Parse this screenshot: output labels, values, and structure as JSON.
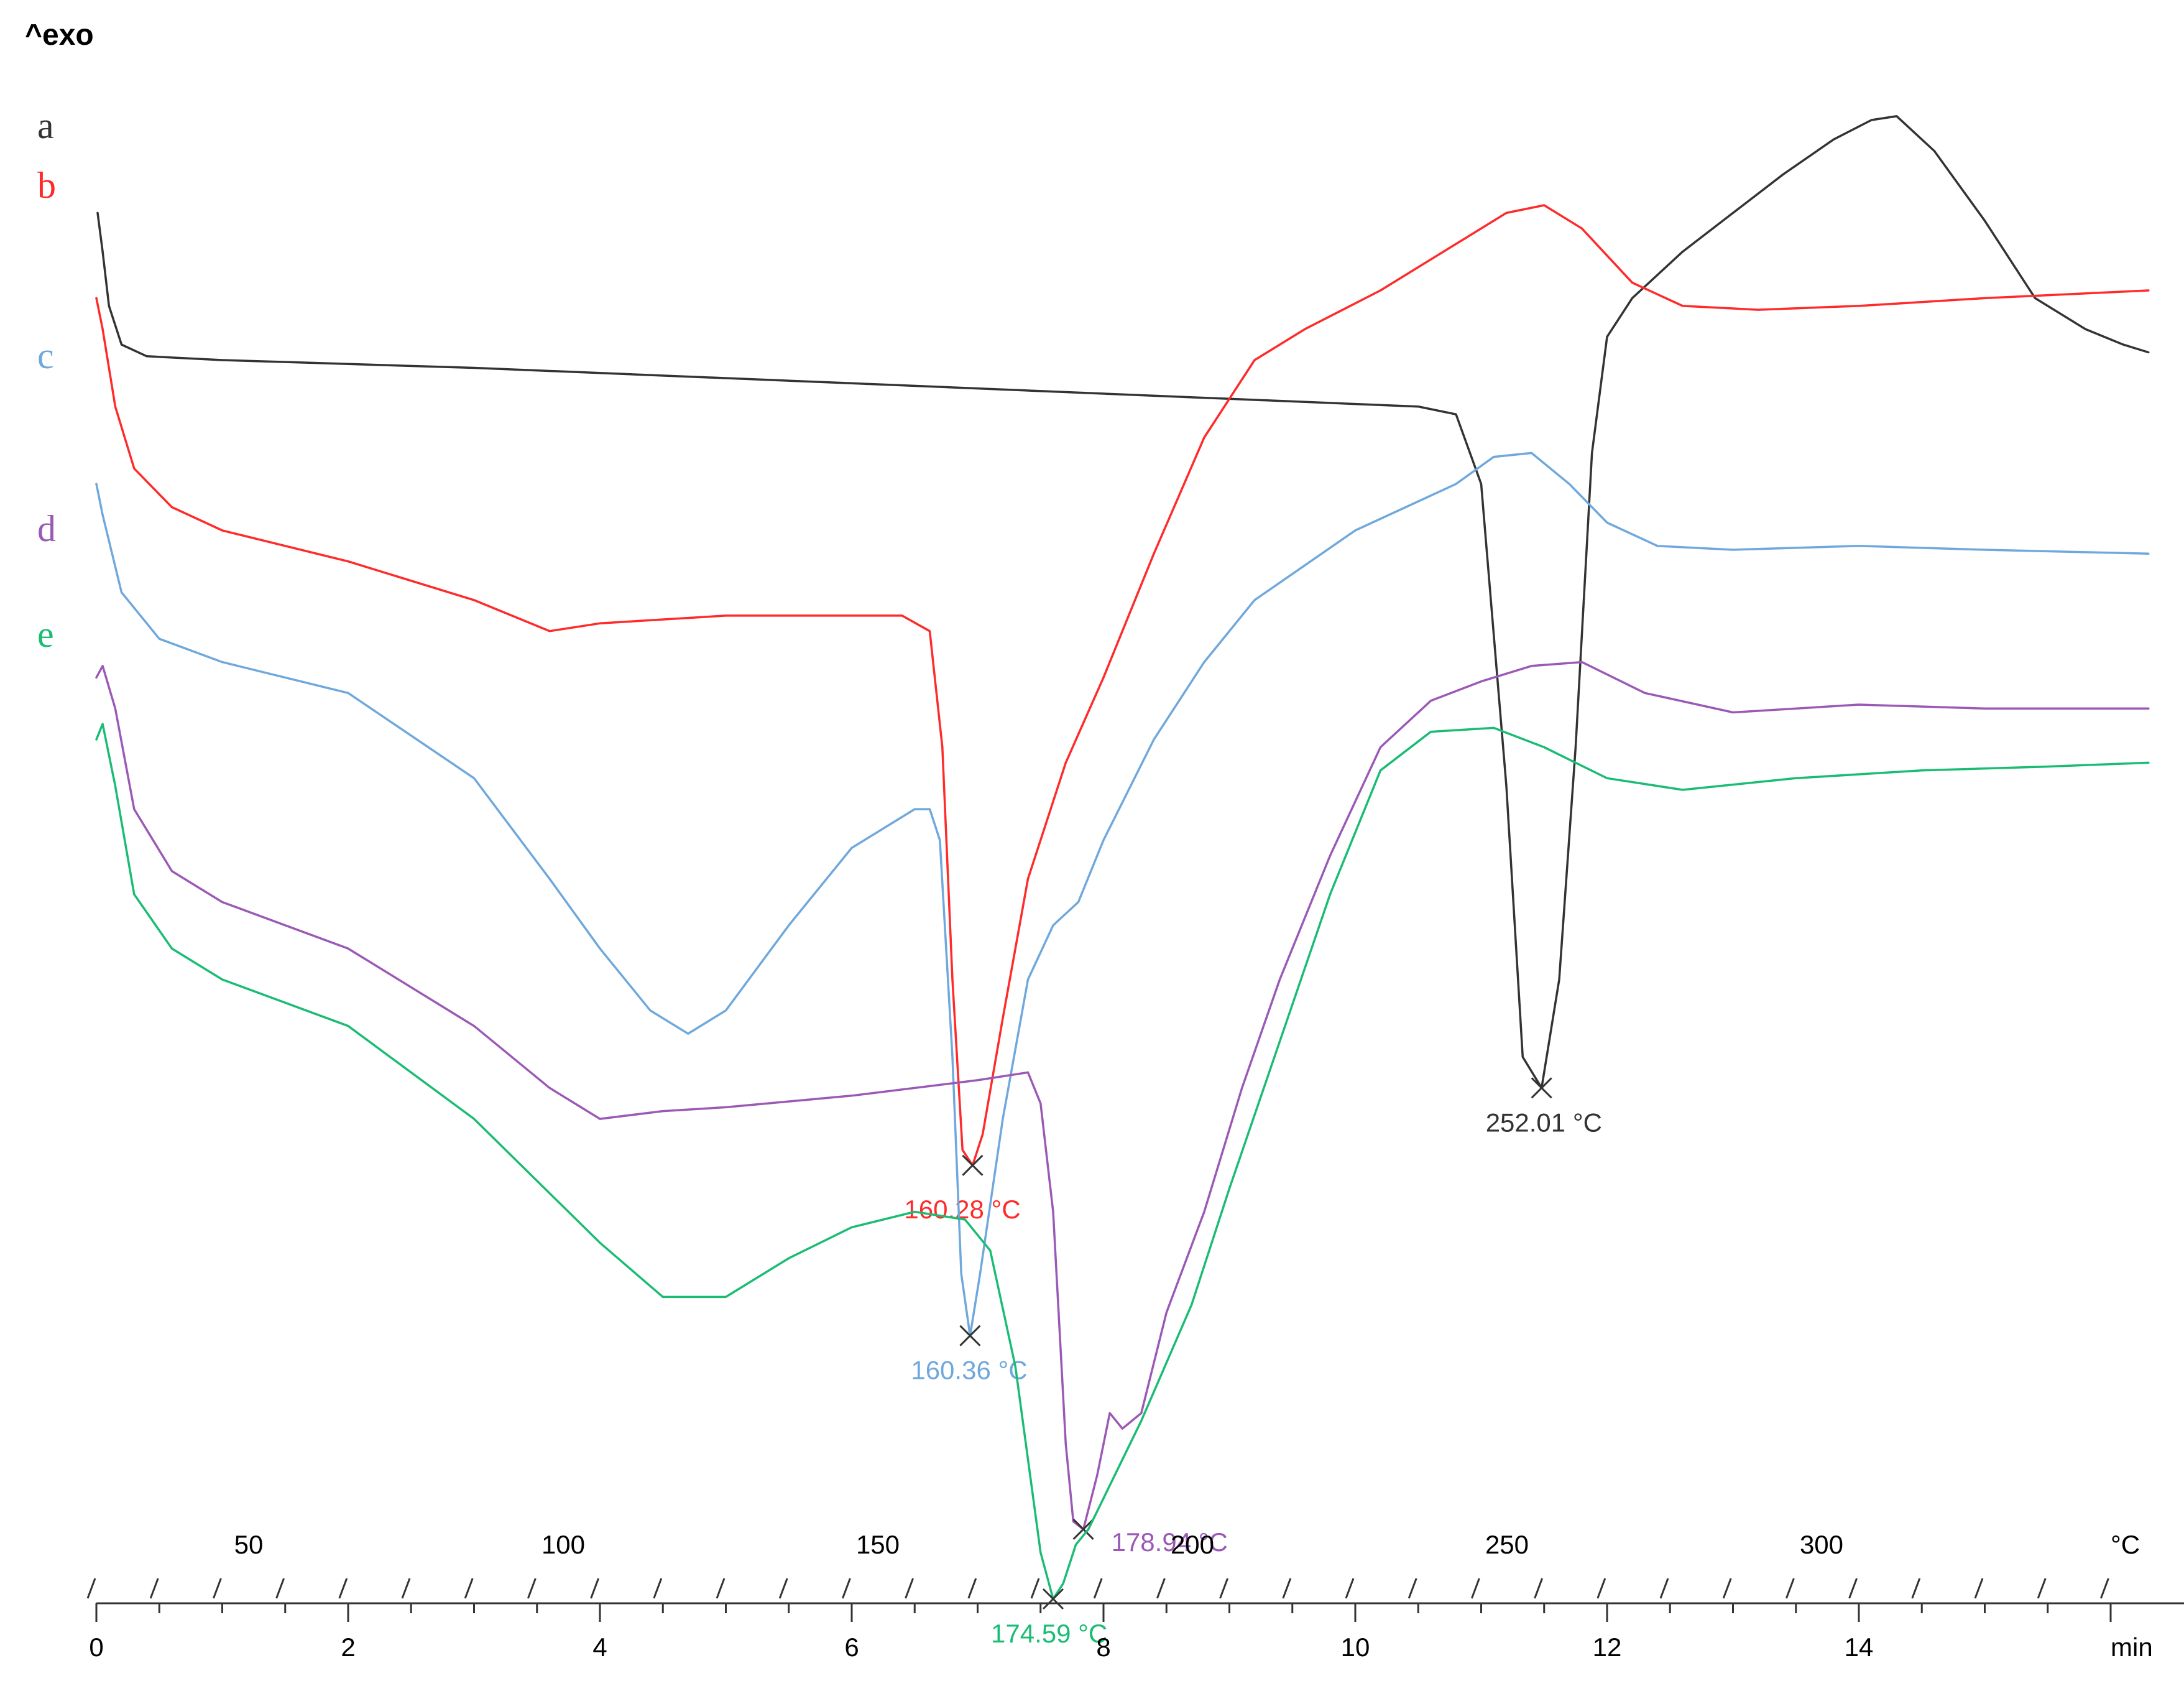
{
  "chart_data": {
    "type": "line",
    "title": "",
    "y_annotation": "^exo",
    "x_primary": {
      "label": "min",
      "ticks": [
        0,
        2,
        4,
        6,
        8,
        10,
        12,
        14
      ],
      "range": [
        0,
        16.3
      ]
    },
    "x_secondary": {
      "label": "°C",
      "ticks": [
        50,
        100,
        150,
        200,
        250,
        300
      ],
      "range": [
        25,
        350
      ]
    },
    "series": [
      {
        "name": "a",
        "color": "#333333",
        "points": [
          [
            0.01,
            0.1
          ],
          [
            0.05,
            0.6
          ],
          [
            0.1,
            1.3
          ],
          [
            0.2,
            1.8
          ],
          [
            0.4,
            1.95
          ],
          [
            1,
            2.0
          ],
          [
            3,
            2.1
          ],
          [
            6,
            2.3
          ],
          [
            9,
            2.5
          ],
          [
            10.5,
            2.6
          ],
          [
            10.8,
            2.7
          ],
          [
            11.0,
            3.6
          ],
          [
            11.2,
            7.5
          ],
          [
            11.33,
            11.0
          ],
          [
            11.48,
            11.4
          ],
          [
            11.62,
            10.0
          ],
          [
            11.75,
            7.0
          ],
          [
            11.88,
            3.2
          ],
          [
            12.0,
            1.7
          ],
          [
            12.2,
            1.2
          ],
          [
            12.6,
            0.6
          ],
          [
            13.0,
            0.1
          ],
          [
            13.4,
            -0.4
          ],
          [
            13.8,
            -0.85
          ],
          [
            14.1,
            -1.1
          ],
          [
            14.3,
            -1.15
          ],
          [
            14.6,
            -0.7
          ],
          [
            15.0,
            0.2
          ],
          [
            15.4,
            1.2
          ],
          [
            15.8,
            1.6
          ],
          [
            16.1,
            1.8
          ],
          [
            16.3,
            1.9
          ]
        ],
        "peaks": [
          {
            "x": 11.48,
            "y": 11.4,
            "label": "252.01 °C"
          }
        ]
      },
      {
        "name": "b",
        "color": "#ff2a2a",
        "points": [
          [
            0.0,
            1.2
          ],
          [
            0.05,
            1.6
          ],
          [
            0.15,
            2.6
          ],
          [
            0.3,
            3.4
          ],
          [
            0.6,
            3.9
          ],
          [
            1,
            4.2
          ],
          [
            2,
            4.6
          ],
          [
            3,
            5.1
          ],
          [
            3.6,
            5.5
          ],
          [
            4,
            5.4
          ],
          [
            5,
            5.3
          ],
          [
            6.4,
            5.3
          ],
          [
            6.62,
            5.5
          ],
          [
            6.72,
            7.0
          ],
          [
            6.8,
            10.0
          ],
          [
            6.88,
            12.2
          ],
          [
            6.96,
            12.4
          ],
          [
            7.04,
            12.0
          ],
          [
            7.2,
            10.5
          ],
          [
            7.4,
            8.7
          ],
          [
            7.7,
            7.2
          ],
          [
            8.0,
            6.1
          ],
          [
            8.4,
            4.5
          ],
          [
            8.8,
            3.0
          ],
          [
            9.2,
            2.0
          ],
          [
            9.6,
            1.6
          ],
          [
            10.2,
            1.1
          ],
          [
            10.8,
            0.5
          ],
          [
            11.2,
            0.1
          ],
          [
            11.5,
            0.0
          ],
          [
            11.8,
            0.3
          ],
          [
            12.2,
            1.0
          ],
          [
            12.6,
            1.3
          ],
          [
            13.2,
            1.35
          ],
          [
            14,
            1.3
          ],
          [
            15,
            1.2
          ],
          [
            16.3,
            1.1
          ]
        ],
        "peaks": [
          {
            "x": 6.96,
            "y": 12.4,
            "label": "160.28 °C"
          }
        ]
      },
      {
        "name": "c",
        "color": "#6fa8dc",
        "points": [
          [
            0.0,
            3.6
          ],
          [
            0.05,
            4.0
          ],
          [
            0.2,
            5.0
          ],
          [
            0.5,
            5.6
          ],
          [
            1,
            5.9
          ],
          [
            2,
            6.3
          ],
          [
            3,
            7.4
          ],
          [
            3.6,
            8.7
          ],
          [
            4,
            9.6
          ],
          [
            4.4,
            10.4
          ],
          [
            4.7,
            10.7
          ],
          [
            5.0,
            10.4
          ],
          [
            5.5,
            9.3
          ],
          [
            6,
            8.3
          ],
          [
            6.5,
            7.8
          ],
          [
            6.62,
            7.8
          ],
          [
            6.7,
            8.2
          ],
          [
            6.8,
            11.0
          ],
          [
            6.87,
            13.8
          ],
          [
            6.94,
            14.6
          ],
          [
            7.02,
            13.8
          ],
          [
            7.2,
            11.8
          ],
          [
            7.4,
            10.0
          ],
          [
            7.6,
            9.3
          ],
          [
            7.8,
            9.0
          ],
          [
            8.0,
            8.2
          ],
          [
            8.4,
            6.9
          ],
          [
            8.8,
            5.9
          ],
          [
            9.2,
            5.1
          ],
          [
            10,
            4.2
          ],
          [
            10.8,
            3.6
          ],
          [
            11.1,
            3.25
          ],
          [
            11.4,
            3.2
          ],
          [
            11.7,
            3.6
          ],
          [
            12,
            4.1
          ],
          [
            12.4,
            4.4
          ],
          [
            13,
            4.45
          ],
          [
            14,
            4.4
          ],
          [
            15,
            4.45
          ],
          [
            16.3,
            4.5
          ]
        ],
        "peaks": [
          {
            "x": 6.94,
            "y": 14.6,
            "label": "160.36 °C"
          }
        ]
      },
      {
        "name": "d",
        "color": "#9b59b6",
        "points": [
          [
            0.0,
            6.1
          ],
          [
            0.05,
            5.95
          ],
          [
            0.15,
            6.5
          ],
          [
            0.3,
            7.8
          ],
          [
            0.6,
            8.6
          ],
          [
            1,
            9.0
          ],
          [
            2,
            9.6
          ],
          [
            3,
            10.6
          ],
          [
            3.6,
            11.4
          ],
          [
            4,
            11.8
          ],
          [
            4.5,
            11.7
          ],
          [
            5,
            11.65
          ],
          [
            6,
            11.5
          ],
          [
            7,
            11.3
          ],
          [
            7.4,
            11.2
          ],
          [
            7.5,
            11.6
          ],
          [
            7.6,
            13.0
          ],
          [
            7.7,
            16.0
          ],
          [
            7.76,
            17.0
          ],
          [
            7.84,
            17.1
          ],
          [
            7.95,
            16.4
          ],
          [
            8.05,
            15.6
          ],
          [
            8.15,
            15.8
          ],
          [
            8.3,
            15.6
          ],
          [
            8.5,
            14.3
          ],
          [
            8.8,
            13.0
          ],
          [
            9.1,
            11.4
          ],
          [
            9.4,
            10.0
          ],
          [
            9.8,
            8.4
          ],
          [
            10.2,
            7.0
          ],
          [
            10.6,
            6.4
          ],
          [
            11.0,
            6.15
          ],
          [
            11.4,
            5.95
          ],
          [
            11.8,
            5.9
          ],
          [
            12.3,
            6.3
          ],
          [
            13,
            6.55
          ],
          [
            14,
            6.45
          ],
          [
            15,
            6.5
          ],
          [
            16.3,
            6.5
          ]
        ],
        "peaks": [
          {
            "x": 7.84,
            "y": 17.1,
            "label": "178.94 °C"
          }
        ]
      },
      {
        "name": "e",
        "color": "#1abc74",
        "points": [
          [
            0.0,
            6.9
          ],
          [
            0.05,
            6.7
          ],
          [
            0.15,
            7.5
          ],
          [
            0.3,
            8.9
          ],
          [
            0.6,
            9.6
          ],
          [
            1,
            10.0
          ],
          [
            2,
            10.6
          ],
          [
            3,
            11.8
          ],
          [
            4,
            13.4
          ],
          [
            4.5,
            14.1
          ],
          [
            5,
            14.1
          ],
          [
            5.5,
            13.6
          ],
          [
            6,
            13.2
          ],
          [
            6.5,
            13.0
          ],
          [
            6.9,
            13.1
          ],
          [
            7.1,
            13.5
          ],
          [
            7.3,
            15.0
          ],
          [
            7.5,
            17.4
          ],
          [
            7.6,
            18.0
          ],
          [
            7.68,
            17.8
          ],
          [
            7.78,
            17.3
          ],
          [
            7.88,
            17.1
          ],
          [
            8.0,
            16.7
          ],
          [
            8.3,
            15.7
          ],
          [
            8.7,
            14.2
          ],
          [
            9.0,
            12.7
          ],
          [
            9.4,
            10.8
          ],
          [
            9.8,
            8.9
          ],
          [
            10.2,
            7.3
          ],
          [
            10.6,
            6.8
          ],
          [
            11.1,
            6.75
          ],
          [
            11.5,
            7.0
          ],
          [
            12,
            7.4
          ],
          [
            12.6,
            7.55
          ],
          [
            13.5,
            7.4
          ],
          [
            14.5,
            7.3
          ],
          [
            15.5,
            7.25
          ],
          [
            16.3,
            7.2
          ]
        ],
        "peaks": [
          {
            "x": 7.6,
            "y": 18.0,
            "label": "174.59 °C"
          }
        ]
      }
    ]
  }
}
